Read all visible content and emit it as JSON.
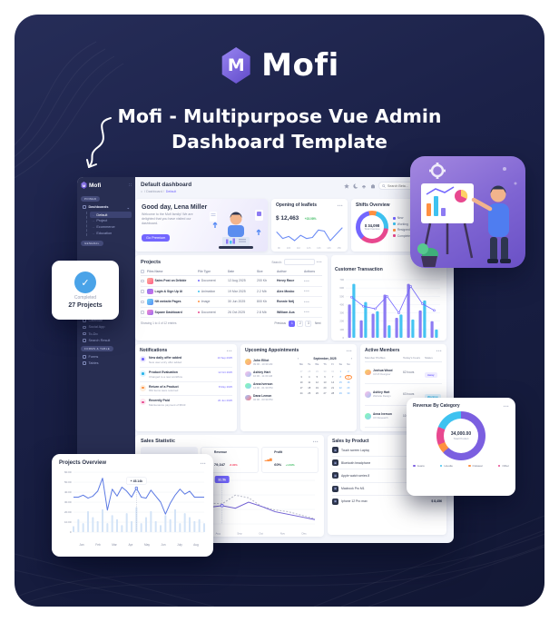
{
  "promo": {
    "brand": "Mofi",
    "title_line1": "Mofi - Multipurpose Vue Admin",
    "title_line2": "Dashboard Template"
  },
  "sidebar": {
    "brand": "Mofi",
    "section_pinned": "PINNED",
    "dashboards_label": "Dashboards",
    "dashboard_items": [
      {
        "label": "Default",
        "active": true
      },
      {
        "label": "Project"
      },
      {
        "label": "Ecommerce"
      },
      {
        "label": "Education"
      }
    ],
    "section_general": "GENERAL",
    "general_items": [
      "Ecommerce",
      "Letter Box",
      "Chat",
      "Users",
      "Bookmarks",
      "Contacts",
      "Tasks",
      "Calendar",
      "Social App",
      "To-Do",
      "Search Result"
    ],
    "section_forms": "FORMS & TABLE",
    "forms_items": [
      "Forms",
      "Tables"
    ]
  },
  "header": {
    "title": "Default dashboard",
    "breadcrumb_home": "⌂",
    "breadcrumb": "/  Dashboard  /",
    "breadcrumb_current": "Default",
    "search_placeholder": "Search Beta..."
  },
  "greeting": {
    "title": "Good day, Lena Miller",
    "message": "Welcome to the Mofi family! We are delighted that you have visited our dashboard.",
    "button": "Go Premium"
  },
  "projects": {
    "title": "Projects",
    "search_label": "Search:",
    "columns": [
      "Files Name",
      "File Type",
      "Date",
      "Size",
      "Author",
      "Actions"
    ],
    "rows": [
      {
        "name": "Sales Post on Dribble",
        "type": "Document",
        "type_color": "#7366ff",
        "date": "12 Aug 2025",
        "size": "200 Kb",
        "author": "Henry Race",
        "thumb": "linear-gradient(135deg,#ffb199,#ff5e8a)"
      },
      {
        "name": "Login & Sign Up Ui",
        "type": "Animation",
        "type_color": "#3ec2f0",
        "date": "19 Mar 2025",
        "size": "2.2 Mb",
        "author": "Alex Mosko",
        "thumb": "linear-gradient(135deg,#8a7bf0,#d06ce8)"
      },
      {
        "name": "Nft website Pages",
        "type": "Image",
        "type_color": "#ff9041",
        "date": "30 Jun 2025",
        "size": "800 Kb",
        "author": "Ronnie Nelj",
        "thumb": "linear-gradient(135deg,#6fd6f5,#5a8df5)"
      },
      {
        "name": "Square Dashboard",
        "type": "Document",
        "type_color": "#e8488f",
        "date": "26 Oct 2025",
        "size": "2.8 Mb",
        "author": "William Aus",
        "thumb": "linear-gradient(135deg,#f58ad0,#9a6cf0)"
      }
    ],
    "footer": "Showing 1 to 4 of 12 entries",
    "pagination": {
      "prev": "Previous",
      "pages": [
        {
          "p": "1",
          "on": true
        },
        {
          "p": "2"
        },
        {
          "p": "3"
        }
      ],
      "next": "Next"
    }
  },
  "notifications": {
    "title": "Notifications",
    "items": [
      {
        "title": "New daily offer added",
        "sub": "New user entry offer added",
        "date": "10 Sep 2025",
        "bg": "#ece9fe",
        "fg": "#7366ff"
      },
      {
        "title": "Product Evaluation",
        "sub": "Changed to a new workflow",
        "date": "12 Oct 2025",
        "bg": "#e0f4fe",
        "fg": "#2ab5ea"
      },
      {
        "title": "Return of a Product",
        "sub": "652 items were returned",
        "date": "8 May 2025",
        "bg": "#fdeede",
        "fg": "#ff9041"
      },
      {
        "title": "Recently Paid",
        "sub": "Maintenance payment of $543",
        "date": "20 Jun 2025",
        "bg": "#fde7f1",
        "fg": "#e8488f"
      }
    ]
  },
  "appointments": {
    "title": "Upcoming Appointments",
    "people": [
      {
        "name": "John Elliot",
        "time": "09:00 - 10:30 AM",
        "abg": "linear-gradient(135deg,#f6d365,#fda085)"
      },
      {
        "name": "Ashley Hart",
        "time": "10:00 - 11:30 AM",
        "abg": "linear-gradient(135deg,#fbc2eb,#a6c1ee)"
      },
      {
        "name": "Anna Iverson",
        "time": "12:00 - 01:30 PM",
        "abg": "linear-gradient(135deg,#84fab0,#8fd3f4)"
      },
      {
        "name": "Dana Lemon",
        "time": "02:00 - 03:30 PM",
        "abg": "linear-gradient(135deg,#a1c4fd,#f68084)"
      }
    ],
    "calendar": {
      "title": "September, 2025",
      "prev": "‹",
      "next": "›",
      "day_headers": [
        "Mo",
        "Tu",
        "We",
        "Th",
        "Fr",
        "Sa",
        "Su"
      ],
      "days": [
        {
          "d": "27",
          "mut": true
        },
        {
          "d": "28",
          "mut": true
        },
        {
          "d": "29",
          "mut": true
        },
        {
          "d": "30",
          "mut": true
        },
        {
          "d": "31",
          "mut": true
        },
        {
          "d": "1",
          "we": true
        },
        {
          "d": "2",
          "we": true
        },
        {
          "d": "3"
        },
        {
          "d": "4"
        },
        {
          "d": "5"
        },
        {
          "d": "6"
        },
        {
          "d": "7"
        },
        {
          "d": "8",
          "we": true
        },
        {
          "d": "9",
          "hl": true
        },
        {
          "d": "10"
        },
        {
          "d": "11"
        },
        {
          "d": "12"
        },
        {
          "d": "13"
        },
        {
          "d": "14"
        },
        {
          "d": "15",
          "we": true
        },
        {
          "d": "16",
          "we": true
        },
        {
          "d": "17"
        },
        {
          "d": "18"
        },
        {
          "d": "19"
        },
        {
          "d": "20"
        },
        {
          "d": "21"
        },
        {
          "d": "22",
          "we": true
        },
        {
          "d": "23",
          "we": true
        },
        {
          "d": "24"
        },
        {
          "d": "25"
        },
        {
          "d": "26"
        },
        {
          "d": "27"
        },
        {
          "d": "28"
        },
        {
          "d": "29",
          "we": true
        },
        {
          "d": "30",
          "we": true
        }
      ]
    }
  },
  "members": {
    "title": "Active Members",
    "columns": [
      "Member Profiles",
      "Today's hours",
      "Status"
    ],
    "rows": [
      {
        "name": "Joshua Wood",
        "role": "UI/UX Designer",
        "hours": "62 hours",
        "status": "Away",
        "sbg": "#efecff",
        "sfg": "#7366ff",
        "abg": "linear-gradient(135deg,#f6d365,#fda085)"
      },
      {
        "name": "Ashley Hart",
        "role": "Website Design",
        "hours": "63 hours",
        "status": "Working",
        "sbg": "#e0f4fe",
        "sfg": "#2ab5ea",
        "abg": "linear-gradient(135deg,#fbc2eb,#a6c1ee)"
      },
      {
        "name": "Anna Iverson",
        "role": "UX Research",
        "hours": "10 hours",
        "status": "Working",
        "sbg": "#e0f4fe",
        "sfg": "#2ab5ea",
        "abg": "linear-gradient(135deg,#84fab0,#8fd3f4)"
      },
      {
        "name": "Erin Bayley",
        "role": "20k+ Online",
        "hours": "73 hours",
        "status": "Away",
        "sbg": "#efecff",
        "sfg": "#7366ff",
        "abg": "linear-gradient(135deg,#a1c4fd,#c2e9fb)"
      }
    ]
  },
  "sales_statistic": {
    "tiles": [
      {
        "label": "Customers",
        "selected": true,
        "icon": "▂▄▆",
        "icon_color": "#7366ff"
      },
      {
        "label": "Revenue",
        "value": "79,347",
        "delta": "-8.90%",
        "delta_color": "#f74866",
        "icon": "▂▄▆",
        "icon_color": "#2ab5ea"
      },
      {
        "label": "Profit",
        "value": "60%",
        "delta": "+1.64%",
        "delta_color": "#3dbb61",
        "icon": "▂▄▆",
        "icon_color": "#ff9041"
      }
    ]
  },
  "sales_by_product": {
    "title": "Sales by Product",
    "items": [
      {
        "name": "Touch screen Laptop",
        "price": "$ 1,938"
      },
      {
        "name": "Bluetooth headphone",
        "price": "$ 2,635"
      },
      {
        "name": "Apple watch series 8",
        "price": "$ 4,125"
      },
      {
        "name": "Macbook Pro M1",
        "price": "$ 5,326"
      },
      {
        "name": "Iphone 12 Pro max",
        "price": "$ 8,456"
      }
    ]
  },
  "completed_card": {
    "label": "Completed",
    "value": "27 Projects",
    "check": "✓"
  },
  "chart_data": [
    {
      "id": "leaflets-spark",
      "type": "line",
      "title": "Opening of leaflets",
      "value": "$ 12,463",
      "delta": "+23.08%",
      "color": "#6c8cf5",
      "x": [
        "9h",
        "10h",
        "11h",
        "12h",
        "13h",
        "14h",
        "15h"
      ],
      "values": [
        8,
        5,
        6,
        4,
        6.5,
        5,
        5.5,
        9,
        8.5,
        4,
        7,
        10
      ]
    },
    {
      "id": "shifts-donut",
      "type": "pie",
      "title": "Shifts Overview",
      "center_value": "$ 34,098",
      "center_label": "Total Overview",
      "from": "-12deg",
      "draw": [
        {
          "color": "#ff9041",
          "value": 8
        },
        {
          "color": "#3ec2f0",
          "value": 22
        },
        {
          "color": "#e8488f",
          "value": 35
        },
        {
          "color": "#7366ff",
          "value": 35
        }
      ],
      "legend": [
        {
          "label": "New",
          "color": "#7366ff"
        },
        {
          "label": "Working",
          "color": "#3ec2f0"
        },
        {
          "label": "Resigned",
          "color": "#ff9041"
        },
        {
          "label": "Completed",
          "color": "#e8488f"
        }
      ]
    },
    {
      "id": "customer-transaction",
      "type": "bar",
      "title": "Customer Transaction",
      "categories": [
        "Jan",
        "Feb",
        "Mar",
        "Apr",
        "May",
        "Jun",
        "July",
        "Aug"
      ],
      "series": [
        {
          "name": "Purple",
          "color": "#8d7bf3",
          "values": [
            400,
            210,
            290,
            520,
            240,
            650,
            330,
            200
          ]
        },
        {
          "name": "Blue",
          "color": "#45c4f2",
          "values": [
            650,
            430,
            320,
            150,
            280,
            220,
            450,
            100
          ]
        }
      ],
      "line": {
        "color": "#7366ff",
        "values": [
          490,
          380,
          350,
          500,
          300,
          620,
          410,
          330
        ]
      },
      "yticks": [
        700,
        600,
        500,
        400,
        300,
        200,
        100,
        0
      ],
      "ylim": [
        0,
        700
      ]
    },
    {
      "id": "revenue-donut",
      "type": "pie",
      "title": "Revenue By Category",
      "center_value": "34,000.00",
      "center_label": "Total Product",
      "from": "0deg",
      "draw": [
        {
          "color": "#7b5fe0",
          "value": 63
        },
        {
          "color": "#ff9041",
          "value": 6
        },
        {
          "color": "#e8488f",
          "value": 12
        },
        {
          "color": "#3ec2f0",
          "value": 19
        }
      ],
      "legend": [
        {
          "label": "Jeans",
          "color": "#7b5fe0"
        },
        {
          "label": "Hoodie",
          "color": "#3ec2f0"
        },
        {
          "label": "Outwear",
          "color": "#ff9041"
        },
        {
          "label": "Other",
          "color": "#e8488f"
        }
      ]
    },
    {
      "id": "sales-statistic",
      "type": "line",
      "title": "Sales Statistic",
      "x": [
        "May",
        "Jun",
        "Jul",
        "Aug",
        "Sep",
        "Oct",
        "Nov",
        "Dec"
      ],
      "series": [
        {
          "name": "Revenue",
          "color": "#6f5ed3",
          "values": [
            45,
            50,
            88,
            58,
            40,
            38,
            42,
            36,
            50,
            40,
            28,
            22,
            16,
            10
          ]
        },
        {
          "name": "Orders",
          "color": "#b9bcc9",
          "dashed": true,
          "values": [
            62,
            70,
            55,
            75,
            60,
            48,
            46,
            66,
            60,
            40,
            32,
            28,
            20,
            12
          ]
        }
      ],
      "tooltip": {
        "label": "32.5k",
        "index": 6
      },
      "ylim": [
        0,
        100
      ]
    },
    {
      "id": "projects-overview",
      "type": "line",
      "title": "Projects Overview",
      "x": [
        "Jan",
        "Feb",
        "Mar",
        "Apr",
        "May",
        "Jun",
        "July",
        "Aug"
      ],
      "yticks": [
        "60.00",
        "50.00",
        "40.00",
        "30.00",
        "20.00",
        "10.00",
        "0"
      ],
      "line": {
        "color": "#5b79e3",
        "values": [
          35,
          35,
          37,
          34,
          36,
          41,
          54,
          22,
          43,
          36,
          45,
          41,
          35,
          44,
          35,
          34,
          42,
          36,
          30,
          18,
          29,
          37,
          43,
          38,
          41,
          35,
          35,
          35
        ]
      },
      "bars": {
        "color": "#d4e4f7",
        "values": [
          6,
          13,
          9,
          21,
          15,
          11,
          23,
          9,
          17,
          13,
          7,
          19,
          11,
          25,
          9,
          15,
          21,
          11,
          7,
          17,
          13,
          23,
          9,
          19,
          15,
          11,
          13,
          9
        ]
      },
      "tooltip": {
        "label": "+ 45.14k",
        "index": 13
      },
      "ylim": [
        0,
        60
      ]
    }
  ]
}
